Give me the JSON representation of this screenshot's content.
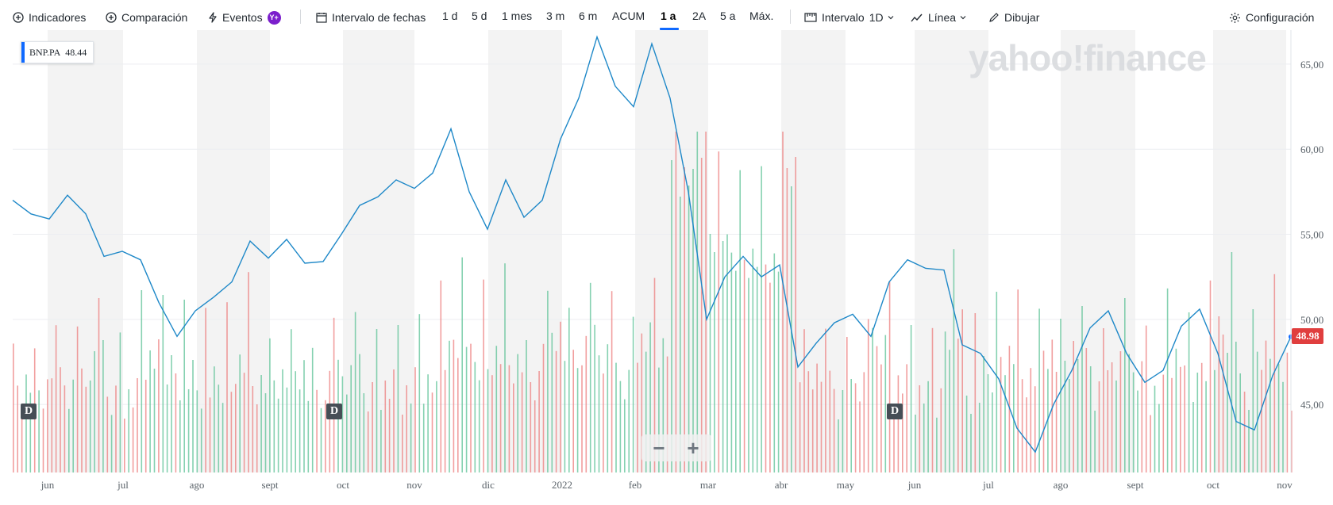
{
  "toolbar": {
    "indicators": "Indicadores",
    "comparison": "Comparación",
    "events": "Eventos",
    "events_badge": "Y+",
    "date_interval": "Intervalo de fechas",
    "ranges": [
      "1 d",
      "5 d",
      "1 mes",
      "3 m",
      "6 m",
      "ACUM",
      "1 a",
      "2A",
      "5 a",
      "Máx."
    ],
    "active_range": "1 a",
    "interval_label": "Intervalo",
    "interval_value": "1D",
    "chart_type": "Línea",
    "draw": "Dibujar",
    "settings": "Configuración"
  },
  "watermark": "yahoo!finance",
  "legend": {
    "symbol": "BNP.PA",
    "value": "48.44"
  },
  "last_price": "48.98",
  "dividend_marker": "D",
  "zoom": {
    "minus": "−",
    "plus": "+"
  },
  "colors": {
    "line": "#1e88c8",
    "volume_up": "#5cc295",
    "volume_down": "#ec7d7d",
    "shaded_band": "#f3f3f3",
    "last_price": "#e03e3e",
    "accent": "#0f69ff"
  },
  "chart_data": {
    "type": "line",
    "title": "",
    "series": [
      {
        "name": "BNP.PA",
        "x_labels": [
          "may",
          "jun",
          "jun",
          "jun",
          "jun",
          "jun",
          "jul",
          "jul",
          "jul",
          "jul",
          "ago",
          "ago",
          "ago",
          "ago",
          "sept",
          "sept",
          "sept",
          "sept",
          "oct",
          "oct",
          "oct",
          "oct",
          "nov",
          "nov",
          "nov",
          "nov",
          "dic",
          "dic",
          "dic",
          "dic",
          "ene",
          "ene",
          "ene",
          "ene",
          "feb",
          "feb",
          "feb",
          "feb",
          "mar",
          "mar",
          "mar",
          "mar",
          "abr",
          "abr",
          "abr",
          "abr",
          "may",
          "may",
          "may",
          "may",
          "jun",
          "jun",
          "jun",
          "jun",
          "jul",
          "jul",
          "jul",
          "jul",
          "ago",
          "ago",
          "ago",
          "ago",
          "sept",
          "sept",
          "sept",
          "sept",
          "oct",
          "oct",
          "oct",
          "oct",
          "nov"
        ],
        "values": [
          57.0,
          56.2,
          55.9,
          57.3,
          56.2,
          53.7,
          54.0,
          53.5,
          51.0,
          49.0,
          50.5,
          51.3,
          52.2,
          54.6,
          53.6,
          54.7,
          53.3,
          53.4,
          55.0,
          56.7,
          57.2,
          58.2,
          57.7,
          58.6,
          61.2,
          57.5,
          55.3,
          58.2,
          56.0,
          57.0,
          60.6,
          63.0,
          66.6,
          63.7,
          62.5,
          66.2,
          63.0,
          57.5,
          50.0,
          52.5,
          53.7,
          52.5,
          53.2,
          47.2,
          48.6,
          49.8,
          50.3,
          49.0,
          52.2,
          53.5,
          53.0,
          52.9,
          48.5,
          48.0,
          46.5,
          43.6,
          42.2,
          45.0,
          47.0,
          49.5,
          50.5,
          48.0,
          46.3,
          47.0,
          49.6,
          50.6,
          48.0,
          44.0,
          43.5,
          46.7,
          48.98
        ],
        "last": 48.98
      }
    ],
    "volume": {
      "name": "Volumen",
      "up_color": "#5cc295",
      "down_color": "#ec7d7d"
    },
    "x_ticks": [
      "jun",
      "jul",
      "ago",
      "sept",
      "oct",
      "nov",
      "dic",
      "2022",
      "feb",
      "mar",
      "abr",
      "may",
      "jun",
      "jul",
      "ago",
      "sept",
      "oct",
      "nov"
    ],
    "y_ticks": [
      "65,00",
      "60,00",
      "55,00",
      "50,00",
      "45,00"
    ],
    "ylim": [
      41.0,
      67.0
    ],
    "y_tick_values": [
      65,
      60,
      55,
      50,
      45
    ],
    "dividend_events": [
      "may",
      "sept",
      "may"
    ],
    "grid": true,
    "legend_position": "top-left"
  }
}
